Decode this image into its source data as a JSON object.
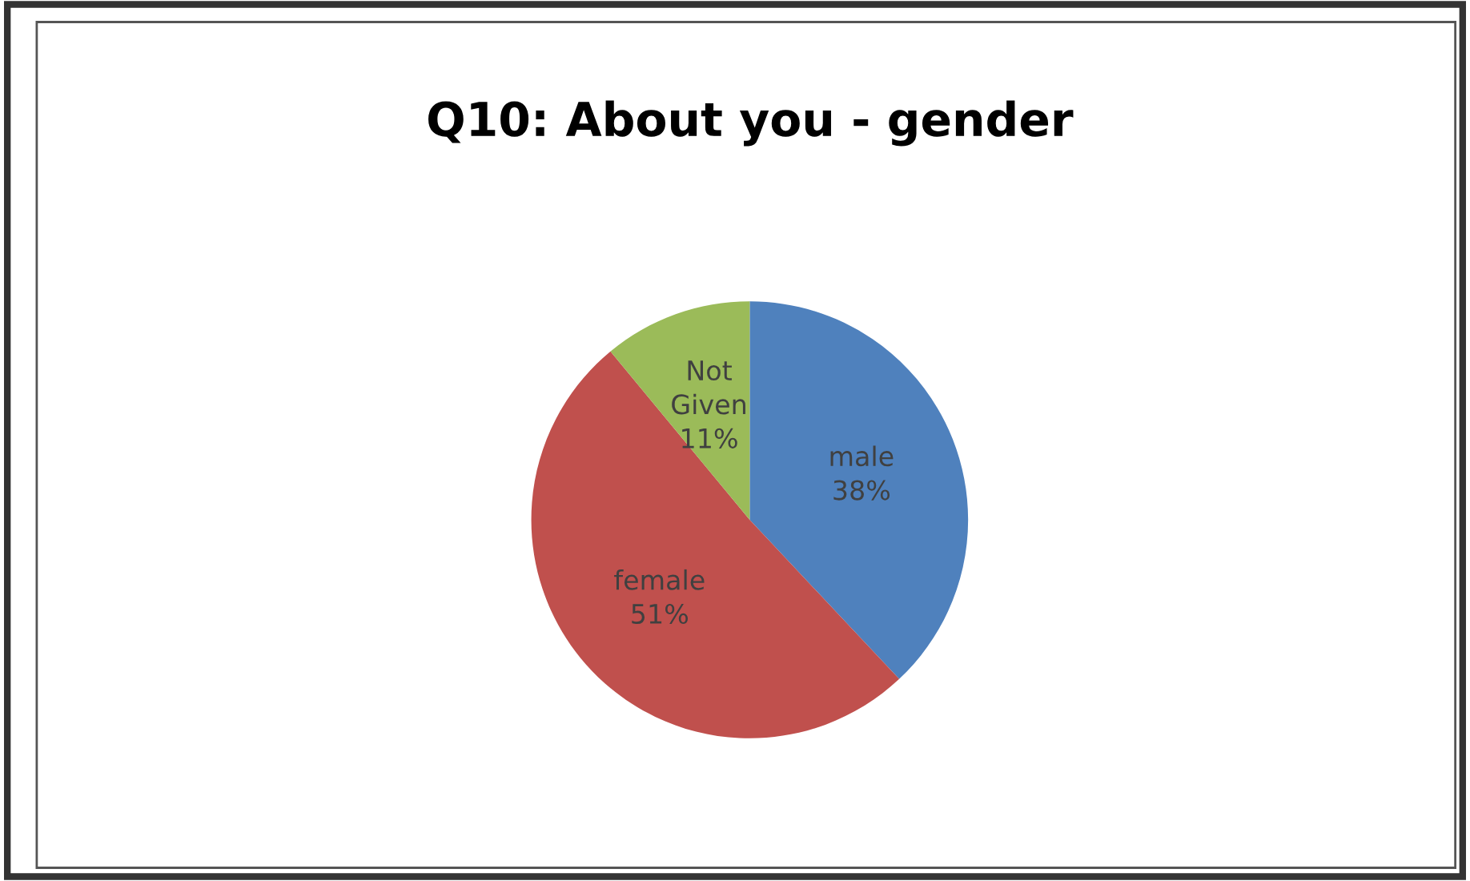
{
  "chart_data": {
    "type": "pie",
    "title": "Q10: About you - gender",
    "categories": [
      "male",
      "female",
      "Not Given"
    ],
    "values": [
      38,
      51,
      11
    ],
    "value_labels": [
      "38%",
      "51%",
      "11%"
    ],
    "colors": [
      "#4f81bd",
      "#c0504d",
      "#9bbb59"
    ],
    "legend": false
  }
}
